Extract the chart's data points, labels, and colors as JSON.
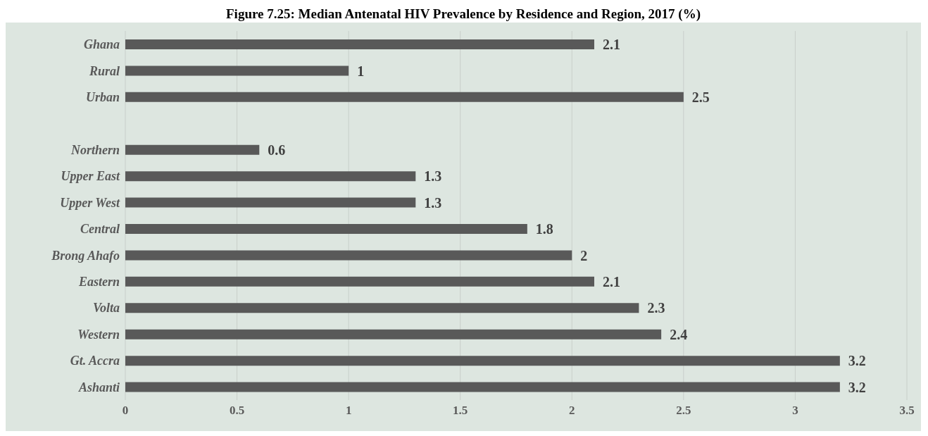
{
  "chart_data": {
    "type": "bar",
    "orientation": "horizontal",
    "title": "Figure 7.25: Median Antenatal HIV Prevalence by Residence and Region, 2017 (%)",
    "categories": [
      "Ghana",
      "Rural",
      "Urban",
      null,
      "Northern",
      "Upper East",
      "Upper West",
      "Central",
      "Brong Ahafo",
      "Eastern",
      "Volta",
      "Western",
      "Gt. Accra",
      "Ashanti"
    ],
    "values": [
      2.1,
      1,
      2.5,
      null,
      0.6,
      1.3,
      1.3,
      1.8,
      2,
      2.1,
      2.3,
      2.4,
      3.2,
      3.2
    ],
    "color": "#595959",
    "xlim": [
      0,
      3.5
    ],
    "xticks": [
      0,
      0.5,
      1,
      1.5,
      2,
      2.5,
      3,
      3.5
    ],
    "grid": "x",
    "data_labels": true,
    "legend": false
  }
}
